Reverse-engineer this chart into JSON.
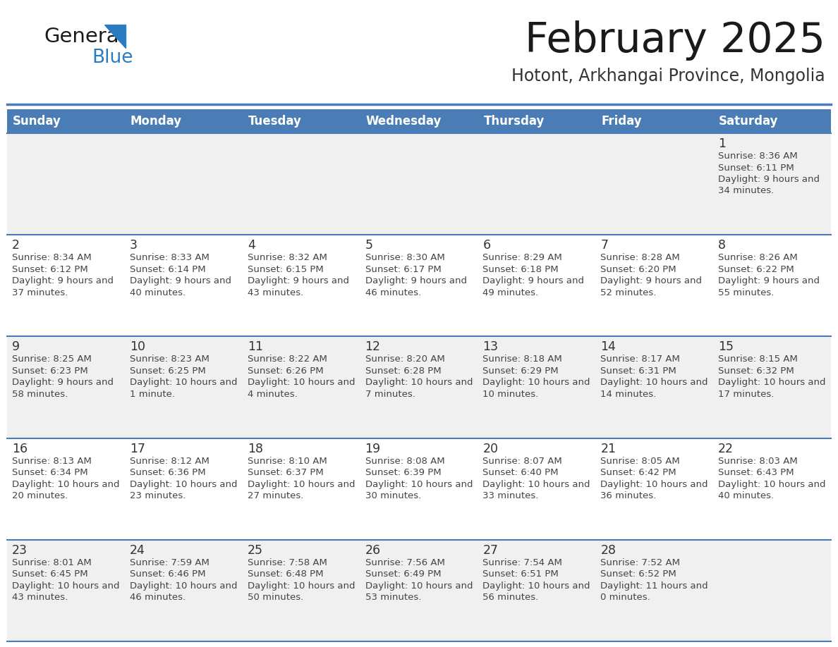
{
  "title": "February 2025",
  "subtitle": "Hotont, Arkhangai Province, Mongolia",
  "days_of_week": [
    "Sunday",
    "Monday",
    "Tuesday",
    "Wednesday",
    "Thursday",
    "Friday",
    "Saturday"
  ],
  "header_bg": "#4a7cb5",
  "header_text": "#ffffff",
  "row_bg_light": "#f0f0f0",
  "row_bg_white": "#ffffff",
  "border_color": "#4a7cb5",
  "day_number_color": "#333333",
  "text_color": "#444444",
  "title_color": "#1a1a1a",
  "subtitle_color": "#333333",
  "logo_general_color": "#1a1a1a",
  "logo_blue_color": "#2a7bbf",
  "calendar_data": [
    {
      "day": 1,
      "col": 6,
      "row": 0,
      "sunrise": "8:36 AM",
      "sunset": "6:11 PM",
      "daylight": "9 hours and 34 minutes."
    },
    {
      "day": 2,
      "col": 0,
      "row": 1,
      "sunrise": "8:34 AM",
      "sunset": "6:12 PM",
      "daylight": "9 hours and 37 minutes."
    },
    {
      "day": 3,
      "col": 1,
      "row": 1,
      "sunrise": "8:33 AM",
      "sunset": "6:14 PM",
      "daylight": "9 hours and 40 minutes."
    },
    {
      "day": 4,
      "col": 2,
      "row": 1,
      "sunrise": "8:32 AM",
      "sunset": "6:15 PM",
      "daylight": "9 hours and 43 minutes."
    },
    {
      "day": 5,
      "col": 3,
      "row": 1,
      "sunrise": "8:30 AM",
      "sunset": "6:17 PM",
      "daylight": "9 hours and 46 minutes."
    },
    {
      "day": 6,
      "col": 4,
      "row": 1,
      "sunrise": "8:29 AM",
      "sunset": "6:18 PM",
      "daylight": "9 hours and 49 minutes."
    },
    {
      "day": 7,
      "col": 5,
      "row": 1,
      "sunrise": "8:28 AM",
      "sunset": "6:20 PM",
      "daylight": "9 hours and 52 minutes."
    },
    {
      "day": 8,
      "col": 6,
      "row": 1,
      "sunrise": "8:26 AM",
      "sunset": "6:22 PM",
      "daylight": "9 hours and 55 minutes."
    },
    {
      "day": 9,
      "col": 0,
      "row": 2,
      "sunrise": "8:25 AM",
      "sunset": "6:23 PM",
      "daylight": "9 hours and 58 minutes."
    },
    {
      "day": 10,
      "col": 1,
      "row": 2,
      "sunrise": "8:23 AM",
      "sunset": "6:25 PM",
      "daylight": "10 hours and 1 minute."
    },
    {
      "day": 11,
      "col": 2,
      "row": 2,
      "sunrise": "8:22 AM",
      "sunset": "6:26 PM",
      "daylight": "10 hours and 4 minutes."
    },
    {
      "day": 12,
      "col": 3,
      "row": 2,
      "sunrise": "8:20 AM",
      "sunset": "6:28 PM",
      "daylight": "10 hours and 7 minutes."
    },
    {
      "day": 13,
      "col": 4,
      "row": 2,
      "sunrise": "8:18 AM",
      "sunset": "6:29 PM",
      "daylight": "10 hours and 10 minutes."
    },
    {
      "day": 14,
      "col": 5,
      "row": 2,
      "sunrise": "8:17 AM",
      "sunset": "6:31 PM",
      "daylight": "10 hours and 14 minutes."
    },
    {
      "day": 15,
      "col": 6,
      "row": 2,
      "sunrise": "8:15 AM",
      "sunset": "6:32 PM",
      "daylight": "10 hours and 17 minutes."
    },
    {
      "day": 16,
      "col": 0,
      "row": 3,
      "sunrise": "8:13 AM",
      "sunset": "6:34 PM",
      "daylight": "10 hours and 20 minutes."
    },
    {
      "day": 17,
      "col": 1,
      "row": 3,
      "sunrise": "8:12 AM",
      "sunset": "6:36 PM",
      "daylight": "10 hours and 23 minutes."
    },
    {
      "day": 18,
      "col": 2,
      "row": 3,
      "sunrise": "8:10 AM",
      "sunset": "6:37 PM",
      "daylight": "10 hours and 27 minutes."
    },
    {
      "day": 19,
      "col": 3,
      "row": 3,
      "sunrise": "8:08 AM",
      "sunset": "6:39 PM",
      "daylight": "10 hours and 30 minutes."
    },
    {
      "day": 20,
      "col": 4,
      "row": 3,
      "sunrise": "8:07 AM",
      "sunset": "6:40 PM",
      "daylight": "10 hours and 33 minutes."
    },
    {
      "day": 21,
      "col": 5,
      "row": 3,
      "sunrise": "8:05 AM",
      "sunset": "6:42 PM",
      "daylight": "10 hours and 36 minutes."
    },
    {
      "day": 22,
      "col": 6,
      "row": 3,
      "sunrise": "8:03 AM",
      "sunset": "6:43 PM",
      "daylight": "10 hours and 40 minutes."
    },
    {
      "day": 23,
      "col": 0,
      "row": 4,
      "sunrise": "8:01 AM",
      "sunset": "6:45 PM",
      "daylight": "10 hours and 43 minutes."
    },
    {
      "day": 24,
      "col": 1,
      "row": 4,
      "sunrise": "7:59 AM",
      "sunset": "6:46 PM",
      "daylight": "10 hours and 46 minutes."
    },
    {
      "day": 25,
      "col": 2,
      "row": 4,
      "sunrise": "7:58 AM",
      "sunset": "6:48 PM",
      "daylight": "10 hours and 50 minutes."
    },
    {
      "day": 26,
      "col": 3,
      "row": 4,
      "sunrise": "7:56 AM",
      "sunset": "6:49 PM",
      "daylight": "10 hours and 53 minutes."
    },
    {
      "day": 27,
      "col": 4,
      "row": 4,
      "sunrise": "7:54 AM",
      "sunset": "6:51 PM",
      "daylight": "10 hours and 56 minutes."
    },
    {
      "day": 28,
      "col": 5,
      "row": 4,
      "sunrise": "7:52 AM",
      "sunset": "6:52 PM",
      "daylight": "11 hours and 0 minutes."
    }
  ]
}
